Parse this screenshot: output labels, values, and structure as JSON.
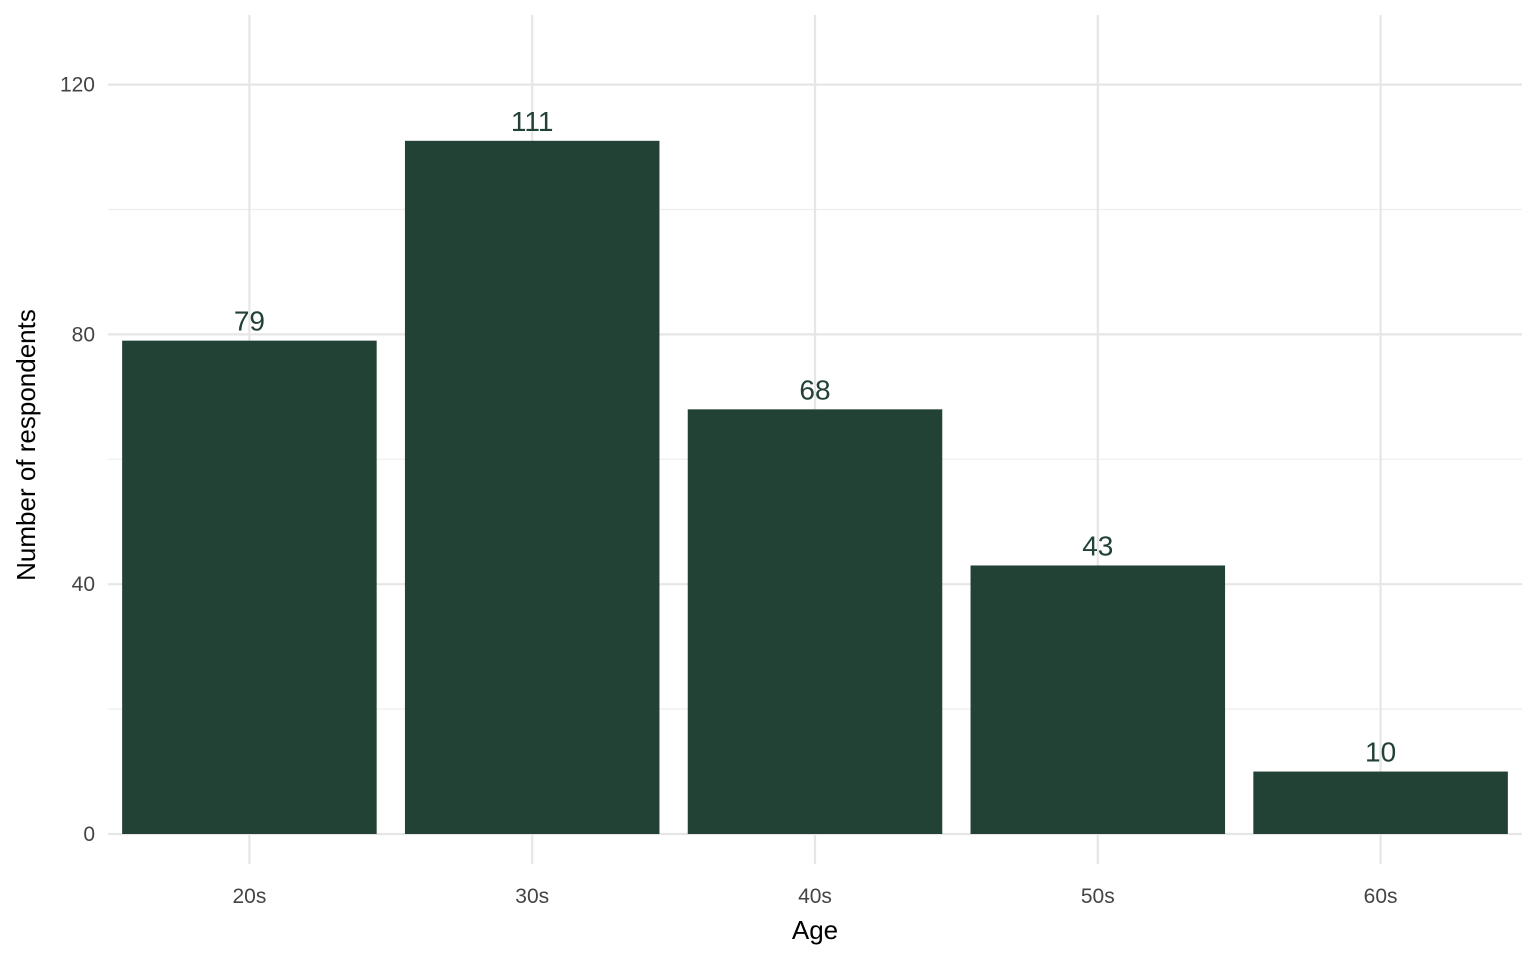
{
  "chart_data": {
    "type": "bar",
    "categories": [
      "20s",
      "30s",
      "40s",
      "50s",
      "60s"
    ],
    "values": [
      79,
      111,
      68,
      43,
      10
    ],
    "data_labels": [
      "79",
      "111",
      "68",
      "43",
      "10"
    ],
    "xlabel": "Age",
    "ylabel": "Number of respondents",
    "ylim": [
      0,
      131.5
    ],
    "yticks": [
      0,
      40,
      80,
      120
    ],
    "ytick_labels": [
      "0",
      "40",
      "80",
      "120"
    ],
    "minor_yticks": [
      20,
      60,
      100
    ],
    "grid": true,
    "legend": "none",
    "colors": {
      "bar": "#214234",
      "label": "#214234",
      "grid": "#e6e6e6"
    }
  }
}
